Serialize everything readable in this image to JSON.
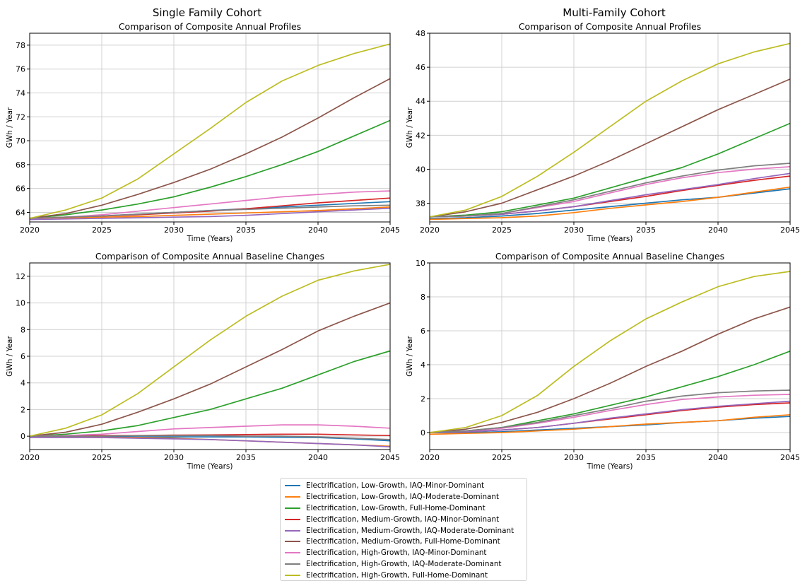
{
  "figure": {
    "col_titles": [
      "Single Family Cohort",
      "Multi-Family Cohort"
    ]
  },
  "series_colors": [
    "#1f77b4",
    "#ff7f0e",
    "#2ca02c",
    "#d62728",
    "#9467bd",
    "#8c564b",
    "#e377c2",
    "#7f7f7f",
    "#bcbd22"
  ],
  "legend": {
    "entries": [
      "Electrification, Low-Growth, IAQ-Minor-Dominant",
      "Electrification, Low-Growth, IAQ-Moderate-Dominant",
      "Electrification, Low-Growth, Full-Home-Dominant",
      "Electrification, Medium-Growth, IAQ-Minor-Dominant",
      "Electrification, Medium-Growth, IAQ-Moderate-Dominant",
      "Electrification, Medium-Growth, Full-Home-Dominant",
      "Electrification, High-Growth, IAQ-Minor-Dominant",
      "Electrification, High-Growth, IAQ-Moderate-Dominant",
      "Electrification, High-Growth, Full-Home-Dominant"
    ]
  },
  "chart_data": [
    {
      "type": "line",
      "cohort": "Single Family Cohort",
      "title": "Comparison of Composite Annual Profiles",
      "xlabel": "Time (Years)",
      "ylabel": "GWh / Year",
      "xlim": [
        2020,
        2045
      ],
      "ylim": [
        63.2,
        79
      ],
      "xticks": [
        2020,
        2025,
        2030,
        2035,
        2040,
        2045
      ],
      "yticks": [
        64,
        66,
        68,
        70,
        72,
        74,
        76,
        78
      ],
      "grid": true,
      "x": [
        2020,
        2022.5,
        2025,
        2027.5,
        2030,
        2032.5,
        2035,
        2037.5,
        2040,
        2042.5,
        2045
      ],
      "series": [
        {
          "name": "Electrification, Low-Growth, IAQ-Minor-Dominant",
          "values": [
            63.5,
            63.6,
            63.7,
            63.85,
            64.0,
            64.15,
            64.3,
            64.45,
            64.6,
            64.75,
            64.9
          ]
        },
        {
          "name": "Electrification, Low-Growth, IAQ-Moderate-Dominant",
          "values": [
            63.5,
            63.55,
            63.6,
            63.65,
            63.75,
            63.85,
            63.95,
            64.05,
            64.15,
            64.3,
            64.45
          ]
        },
        {
          "name": "Electrification, Low-Growth, Full-Home-Dominant",
          "values": [
            63.5,
            63.8,
            64.2,
            64.7,
            65.3,
            66.1,
            67.0,
            68.0,
            69.1,
            70.4,
            71.7
          ]
        },
        {
          "name": "Electrification, Medium-Growth, IAQ-Minor-Dominant",
          "values": [
            63.5,
            63.6,
            63.7,
            63.8,
            63.95,
            64.1,
            64.3,
            64.55,
            64.8,
            65.0,
            65.2
          ]
        },
        {
          "name": "Electrification, Medium-Growth, IAQ-Moderate-Dominant",
          "values": [
            63.4,
            63.45,
            63.5,
            63.55,
            63.6,
            63.65,
            63.75,
            63.9,
            64.05,
            64.2,
            64.35
          ]
        },
        {
          "name": "Electrification, Medium-Growth, Full-Home-Dominant",
          "values": [
            63.5,
            63.9,
            64.6,
            65.5,
            66.5,
            67.6,
            68.9,
            70.3,
            71.9,
            73.6,
            75.2
          ]
        },
        {
          "name": "Electrification, High-Growth, IAQ-Minor-Dominant",
          "values": [
            63.5,
            63.6,
            63.8,
            64.1,
            64.4,
            64.7,
            65.0,
            65.3,
            65.5,
            65.7,
            65.8
          ]
        },
        {
          "name": "Electrification, High-Growth, IAQ-Moderate-Dominant",
          "values": [
            63.5,
            63.6,
            63.7,
            63.85,
            64.0,
            64.15,
            64.25,
            64.35,
            64.45,
            64.55,
            64.6
          ]
        },
        {
          "name": "Electrification, High-Growth, Full-Home-Dominant",
          "values": [
            63.5,
            64.2,
            65.2,
            66.8,
            68.9,
            71.0,
            73.2,
            75.0,
            76.3,
            77.3,
            78.1
          ]
        }
      ]
    },
    {
      "type": "line",
      "cohort": "Multi-Family Cohort",
      "title": "Comparison of Composite Annual Profiles",
      "xlabel": "Time (Years)",
      "ylabel": "GWh / Year",
      "xlim": [
        2020,
        2045
      ],
      "ylim": [
        36.9,
        48
      ],
      "xticks": [
        2020,
        2025,
        2030,
        2035,
        2040,
        2045
      ],
      "yticks": [
        38,
        40,
        42,
        44,
        46,
        48
      ],
      "grid": true,
      "x": [
        2020,
        2022.5,
        2025,
        2027.5,
        2030,
        2032.5,
        2035,
        2037.5,
        2040,
        2042.5,
        2045
      ],
      "series": [
        {
          "name": "Electrification, Low-Growth, IAQ-Minor-Dominant",
          "values": [
            37.1,
            37.15,
            37.25,
            37.4,
            37.6,
            37.8,
            38.0,
            38.2,
            38.35,
            38.6,
            38.85
          ]
        },
        {
          "name": "Electrification, Low-Growth, IAQ-Moderate-Dominant",
          "values": [
            37.05,
            37.1,
            37.15,
            37.25,
            37.45,
            37.7,
            37.9,
            38.1,
            38.35,
            38.65,
            38.95
          ]
        },
        {
          "name": "Electrification, Low-Growth, Full-Home-Dominant",
          "values": [
            37.2,
            37.3,
            37.5,
            37.9,
            38.3,
            38.9,
            39.5,
            40.1,
            40.9,
            41.8,
            42.7
          ]
        },
        {
          "name": "Electrification, Medium-Growth, IAQ-Minor-Dominant",
          "values": [
            37.2,
            37.25,
            37.35,
            37.55,
            37.8,
            38.1,
            38.4,
            38.75,
            39.05,
            39.35,
            39.6
          ]
        },
        {
          "name": "Electrification, Medium-Growth, IAQ-Moderate-Dominant",
          "values": [
            37.2,
            37.25,
            37.35,
            37.55,
            37.8,
            38.15,
            38.5,
            38.8,
            39.1,
            39.45,
            39.75
          ]
        },
        {
          "name": "Electrification, Medium-Growth, Full-Home-Dominant",
          "values": [
            37.2,
            37.5,
            38.0,
            38.8,
            39.6,
            40.5,
            41.5,
            42.5,
            43.5,
            44.4,
            45.3
          ]
        },
        {
          "name": "Electrification, High-Growth, IAQ-Minor-Dominant",
          "values": [
            37.2,
            37.25,
            37.4,
            37.75,
            38.1,
            38.6,
            39.1,
            39.5,
            39.8,
            40.0,
            40.15
          ]
        },
        {
          "name": "Electrification, High-Growth, IAQ-Moderate-Dominant",
          "values": [
            37.2,
            37.25,
            37.4,
            37.8,
            38.2,
            38.7,
            39.2,
            39.6,
            39.95,
            40.2,
            40.35
          ]
        },
        {
          "name": "Electrification, High-Growth, Full-Home-Dominant",
          "values": [
            37.2,
            37.6,
            38.4,
            39.6,
            41.0,
            42.5,
            44.0,
            45.2,
            46.2,
            46.9,
            47.4
          ]
        }
      ]
    },
    {
      "type": "line",
      "cohort": "Single Family Cohort",
      "title": "Comparison of Composite Annual Baseline Changes",
      "xlabel": "Time (Years)",
      "ylabel": "GWh / Year",
      "xlim": [
        2020,
        2045
      ],
      "ylim": [
        -1,
        13
      ],
      "xticks": [
        2020,
        2025,
        2030,
        2035,
        2040,
        2045
      ],
      "yticks": [
        0,
        2,
        4,
        6,
        8,
        10,
        12
      ],
      "grid": true,
      "x": [
        2020,
        2022.5,
        2025,
        2027.5,
        2030,
        2032.5,
        2035,
        2037.5,
        2040,
        2042.5,
        2045
      ],
      "series": [
        {
          "name": "Electrification, Low-Growth, IAQ-Minor-Dominant",
          "values": [
            0.0,
            0.0,
            -0.02,
            -0.05,
            -0.05,
            -0.05,
            -0.05,
            -0.08,
            -0.1,
            -0.2,
            -0.35
          ]
        },
        {
          "name": "Electrification, Low-Growth, IAQ-Moderate-Dominant",
          "values": [
            0.0,
            -0.05,
            -0.1,
            -0.1,
            -0.15,
            -0.25,
            -0.35,
            -0.45,
            -0.55,
            -0.65,
            -0.75
          ]
        },
        {
          "name": "Electrification, Low-Growth, Full-Home-Dominant",
          "values": [
            0.0,
            0.15,
            0.4,
            0.8,
            1.4,
            2.0,
            2.8,
            3.6,
            4.6,
            5.6,
            6.4
          ]
        },
        {
          "name": "Electrification, Medium-Growth, IAQ-Minor-Dominant",
          "values": [
            0.0,
            0.02,
            0.05,
            0.05,
            0.08,
            0.1,
            0.12,
            0.15,
            0.15,
            0.1,
            0.05
          ]
        },
        {
          "name": "Electrification, Medium-Growth, IAQ-Moderate-Dominant",
          "values": [
            -0.1,
            -0.1,
            -0.1,
            -0.15,
            -0.2,
            -0.25,
            -0.35,
            -0.45,
            -0.55,
            -0.65,
            -0.8
          ]
        },
        {
          "name": "Electrification, Medium-Growth, Full-Home-Dominant",
          "values": [
            0.0,
            0.3,
            0.9,
            1.8,
            2.8,
            3.9,
            5.2,
            6.5,
            7.9,
            9.0,
            10.0
          ]
        },
        {
          "name": "Electrification, High-Growth, IAQ-Minor-Dominant",
          "values": [
            0.0,
            0.05,
            0.15,
            0.35,
            0.55,
            0.65,
            0.75,
            0.85,
            0.85,
            0.75,
            0.6
          ]
        },
        {
          "name": "Electrification, High-Growth, IAQ-Moderate-Dominant",
          "values": [
            0.0,
            0.0,
            0.0,
            0.05,
            0.05,
            0.05,
            0.0,
            0.0,
            -0.05,
            -0.15,
            -0.25
          ]
        },
        {
          "name": "Electrification, High-Growth, Full-Home-Dominant",
          "values": [
            0.0,
            0.6,
            1.6,
            3.2,
            5.2,
            7.2,
            9.0,
            10.5,
            11.7,
            12.4,
            12.9
          ]
        }
      ]
    },
    {
      "type": "line",
      "cohort": "Multi-Family Cohort",
      "title": "Comparison of Composite Annual Baseline Changes",
      "xlabel": "Time (Years)",
      "ylabel": "GWh / Year",
      "xlim": [
        2020,
        2045
      ],
      "ylim": [
        -1,
        10
      ],
      "xticks": [
        2020,
        2025,
        2030,
        2035,
        2040,
        2045
      ],
      "yticks": [
        0,
        2,
        4,
        6,
        8,
        10
      ],
      "grid": true,
      "x": [
        2020,
        2022.5,
        2025,
        2027.5,
        2030,
        2032.5,
        2035,
        2037.5,
        2040,
        2042.5,
        2045
      ],
      "series": [
        {
          "name": "Electrification, Low-Growth, IAQ-Minor-Dominant",
          "values": [
            0.0,
            0.0,
            0.05,
            0.15,
            0.25,
            0.35,
            0.45,
            0.6,
            0.7,
            0.85,
            0.95
          ]
        },
        {
          "name": "Electrification, Low-Growth, IAQ-Moderate-Dominant",
          "values": [
            -0.1,
            -0.05,
            0.0,
            0.1,
            0.2,
            0.35,
            0.5,
            0.6,
            0.7,
            0.9,
            1.05
          ]
        },
        {
          "name": "Electrification, Low-Growth, Full-Home-Dominant",
          "values": [
            0.0,
            0.1,
            0.3,
            0.7,
            1.1,
            1.6,
            2.1,
            2.7,
            3.3,
            4.0,
            4.8
          ]
        },
        {
          "name": "Electrification, Medium-Growth, IAQ-Minor-Dominant",
          "values": [
            0.0,
            0.05,
            0.15,
            0.3,
            0.55,
            0.8,
            1.05,
            1.3,
            1.5,
            1.65,
            1.75
          ]
        },
        {
          "name": "Electrification, Medium-Growth, IAQ-Moderate-Dominant",
          "values": [
            0.0,
            0.05,
            0.15,
            0.3,
            0.55,
            0.85,
            1.1,
            1.35,
            1.55,
            1.7,
            1.85
          ]
        },
        {
          "name": "Electrification, Medium-Growth, Full-Home-Dominant",
          "values": [
            0.0,
            0.2,
            0.6,
            1.2,
            2.0,
            2.9,
            3.9,
            4.8,
            5.8,
            6.7,
            7.4
          ]
        },
        {
          "name": "Electrification, High-Growth, IAQ-Minor-Dominant",
          "values": [
            0.0,
            0.1,
            0.25,
            0.55,
            0.9,
            1.3,
            1.65,
            1.95,
            2.1,
            2.2,
            2.25
          ]
        },
        {
          "name": "Electrification, High-Growth, IAQ-Moderate-Dominant",
          "values": [
            0.0,
            0.1,
            0.3,
            0.6,
            1.0,
            1.4,
            1.85,
            2.15,
            2.35,
            2.45,
            2.5
          ]
        },
        {
          "name": "Electrification, High-Growth, Full-Home-Dominant",
          "values": [
            0.0,
            0.3,
            1.0,
            2.2,
            3.9,
            5.4,
            6.7,
            7.7,
            8.6,
            9.2,
            9.5
          ]
        }
      ]
    }
  ]
}
